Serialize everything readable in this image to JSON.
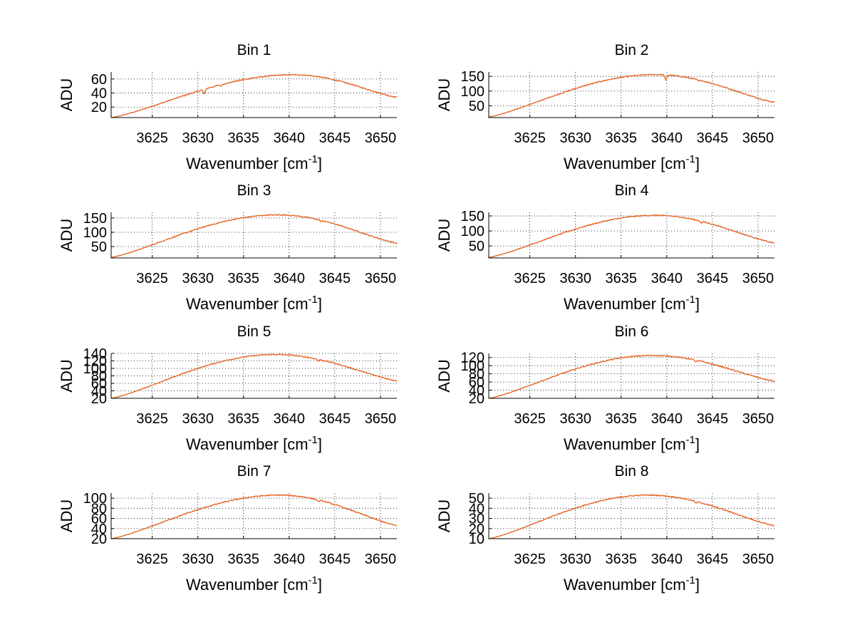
{
  "chart_data": [
    {
      "type": "line",
      "title": "Bin 1",
      "xlabel": "Wavenumber [cm",
      "xlabel_sup": "-1",
      "xlabel_end": "]",
      "ylabel": "ADU",
      "xlim": [
        3620.5,
        3651.8
      ],
      "ylim": [
        5,
        70
      ],
      "grid": true,
      "xticks": [
        3625,
        3630,
        3635,
        3640,
        3645,
        3650
      ],
      "yticks": [
        20,
        40,
        60
      ],
      "series": [
        {
          "color": "#ff6600",
          "peak_x": 3640.5,
          "peak_y": 66,
          "y_start": 5,
          "y_end": 34,
          "dips": [
            {
              "x": 3630.7,
              "depth": 7
            },
            {
              "x": 3632.5,
              "depth": 2
            }
          ]
        }
      ]
    },
    {
      "type": "line",
      "title": "Bin 2",
      "xlabel": "Wavenumber [cm",
      "xlabel_sup": "-1",
      "xlabel_end": "]",
      "ylabel": "ADU",
      "xlim": [
        3620.5,
        3651.8
      ],
      "ylim": [
        10,
        165
      ],
      "grid": true,
      "xticks": [
        3625,
        3630,
        3635,
        3640,
        3645,
        3650
      ],
      "yticks": [
        50,
        100,
        150
      ],
      "series": [
        {
          "color": "#ff6600",
          "peak_x": 3638.8,
          "peak_y": 156,
          "y_start": 12,
          "y_end": 62,
          "dips": [
            {
              "x": 3639.9,
              "depth": 18
            },
            {
              "x": 3643.5,
              "depth": 4
            }
          ]
        }
      ]
    },
    {
      "type": "line",
      "title": "Bin 3",
      "xlabel": "Wavenumber [cm",
      "xlabel_sup": "-1",
      "xlabel_end": "]",
      "ylabel": "ADU",
      "xlim": [
        3620.5,
        3651.8
      ],
      "ylim": [
        10,
        170
      ],
      "grid": true,
      "xticks": [
        3625,
        3630,
        3635,
        3640,
        3645,
        3650
      ],
      "yticks": [
        50,
        100,
        150
      ],
      "series": [
        {
          "color": "#ff6600",
          "peak_x": 3638.8,
          "peak_y": 161,
          "y_start": 12,
          "y_end": 62,
          "dips": [
            {
              "x": 3643.5,
              "depth": 4
            }
          ]
        }
      ]
    },
    {
      "type": "line",
      "title": "Bin 4",
      "xlabel": "Wavenumber [cm",
      "xlabel_sup": "-1",
      "xlabel_end": "]",
      "ylabel": "ADU",
      "xlim": [
        3620.5,
        3651.8
      ],
      "ylim": [
        10,
        162
      ],
      "grid": true,
      "xticks": [
        3625,
        3630,
        3635,
        3640,
        3645,
        3650
      ],
      "yticks": [
        50,
        100,
        150
      ],
      "series": [
        {
          "color": "#ff6600",
          "peak_x": 3638.8,
          "peak_y": 152,
          "y_start": 12,
          "y_end": 60,
          "dips": [
            {
              "x": 3643.8,
              "depth": 6
            }
          ]
        }
      ]
    },
    {
      "type": "line",
      "title": "Bin 5",
      "xlabel": "Wavenumber [cm",
      "xlabel_sup": "-1",
      "xlabel_end": "]",
      "ylabel": "ADU",
      "xlim": [
        3620.5,
        3651.8
      ],
      "ylim": [
        20,
        140
      ],
      "grid": true,
      "xticks": [
        3625,
        3630,
        3635,
        3640,
        3645,
        3650
      ],
      "yticks": [
        20,
        40,
        60,
        80,
        100,
        120,
        140
      ],
      "series": [
        {
          "color": "#ff6600",
          "peak_x": 3638.5,
          "peak_y": 137,
          "y_start": 20,
          "y_end": 67,
          "dips": [
            {
              "x": 3643.2,
              "depth": 4
            }
          ]
        }
      ]
    },
    {
      "type": "line",
      "title": "Bin 6",
      "xlabel": "Wavenumber [cm",
      "xlabel_sup": "-1",
      "xlabel_end": "]",
      "ylabel": "ADU",
      "xlim": [
        3620.5,
        3651.8
      ],
      "ylim": [
        20,
        130
      ],
      "grid": true,
      "xticks": [
        3625,
        3630,
        3635,
        3640,
        3645,
        3650
      ],
      "yticks": [
        20,
        40,
        60,
        80,
        100,
        120
      ],
      "series": [
        {
          "color": "#ff6600",
          "peak_x": 3638.5,
          "peak_y": 125,
          "y_start": 20,
          "y_end": 62,
          "dips": [
            {
              "x": 3643.2,
              "depth": 4
            }
          ]
        }
      ]
    },
    {
      "type": "line",
      "title": "Bin 7",
      "xlabel": "Wavenumber [cm",
      "xlabel_sup": "-1",
      "xlabel_end": "]",
      "ylabel": "ADU",
      "xlim": [
        3620.5,
        3651.8
      ],
      "ylim": [
        20,
        110
      ],
      "grid": true,
      "xticks": [
        3625,
        3630,
        3635,
        3640,
        3645,
        3650
      ],
      "yticks": [
        20,
        40,
        60,
        80,
        100
      ],
      "series": [
        {
          "color": "#ff6600",
          "peak_x": 3639.0,
          "peak_y": 106,
          "y_start": 20,
          "y_end": 46,
          "dips": [
            {
              "x": 3643.2,
              "depth": 3
            }
          ]
        }
      ]
    },
    {
      "type": "line",
      "title": "Bin 8",
      "xlabel": "Wavenumber [cm",
      "xlabel_sup": "-1",
      "xlabel_end": "]",
      "ylabel": "ADU",
      "xlim": [
        3620.5,
        3651.8
      ],
      "ylim": [
        10,
        55
      ],
      "grid": true,
      "xticks": [
        3625,
        3630,
        3635,
        3640,
        3645,
        3650
      ],
      "yticks": [
        10,
        20,
        30,
        40,
        50
      ],
      "series": [
        {
          "color": "#ff6600",
          "peak_x": 3638.0,
          "peak_y": 53,
          "y_start": 10,
          "y_end": 23,
          "dips": [
            {
              "x": 3643.2,
              "depth": 2
            }
          ]
        }
      ]
    }
  ]
}
